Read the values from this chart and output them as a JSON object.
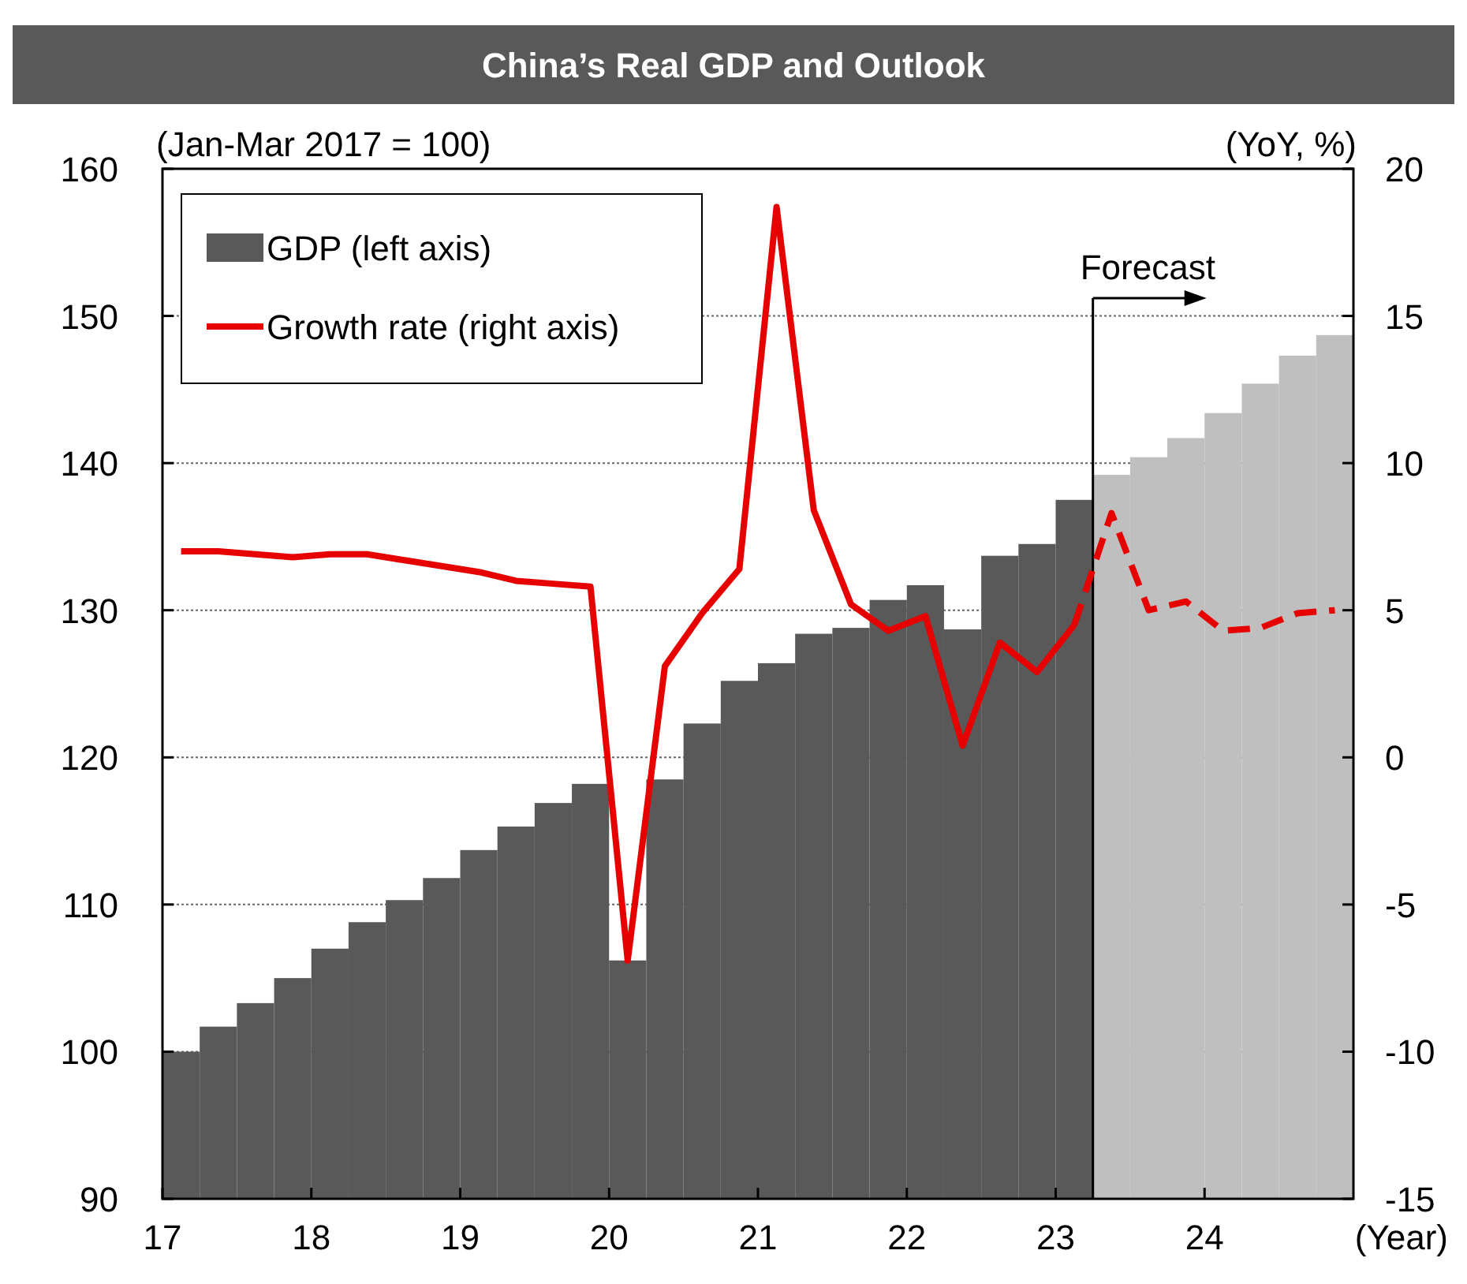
{
  "chart_data": {
    "type": "bar",
    "title": "China’s Real GDP and Outlook",
    "xlabel": "(Year)",
    "ylabel": "(Jan-Mar 2017 = 100)",
    "y2label": "(YoY, %)",
    "x": [
      2017.125,
      2017.375,
      2017.625,
      2017.875,
      2018.125,
      2018.375,
      2018.625,
      2018.875,
      2019.125,
      2019.375,
      2019.625,
      2019.875,
      2020.125,
      2020.375,
      2020.625,
      2020.875,
      2021.125,
      2021.375,
      2021.625,
      2021.875,
      2022.125,
      2022.375,
      2022.625,
      2022.875,
      2023.125,
      2023.375,
      2023.625,
      2023.875,
      2024.125,
      2024.375,
      2024.625,
      2024.875
    ],
    "xlim": [
      2017,
      2025
    ],
    "xticks": [
      {
        "value": 2017,
        "label": "17"
      },
      {
        "value": 2018,
        "label": "18"
      },
      {
        "value": 2019,
        "label": "19"
      },
      {
        "value": 2020,
        "label": "20"
      },
      {
        "value": 2021,
        "label": "21"
      },
      {
        "value": 2022,
        "label": "22"
      },
      {
        "value": 2023,
        "label": "23"
      },
      {
        "value": 2024,
        "label": "24"
      }
    ],
    "ylim": [
      90,
      160
    ],
    "yticks": [
      90,
      100,
      110,
      120,
      130,
      140,
      150,
      160
    ],
    "y2lim": [
      -15,
      20
    ],
    "y2ticks": [
      -15,
      -10,
      -5,
      0,
      5,
      10,
      15,
      20
    ],
    "grid": "y",
    "legend": "top left",
    "ref_lines": [
      {
        "axis": "x",
        "value": 2023.25,
        "label": "Forecast",
        "color": "#000000"
      }
    ],
    "series": [
      {
        "name": "GDP (left axis)",
        "color": "#595959",
        "colors": [
          "#595959",
          "#595959",
          "#595959",
          "#595959",
          "#595959",
          "#595959",
          "#595959",
          "#595959",
          "#595959",
          "#595959",
          "#595959",
          "#595959",
          "#595959",
          "#595959",
          "#595959",
          "#595959",
          "#595959",
          "#595959",
          "#595959",
          "#595959",
          "#595959",
          "#595959",
          "#595959",
          "#595959",
          "#595959",
          "#bfbfbf",
          "#bfbfbf",
          "#bfbfbf",
          "#bfbfbf",
          "#bfbfbf",
          "#bfbfbf",
          "#bfbfbf"
        ],
        "values": [
          100,
          101.7,
          103.3,
          105,
          107,
          108.8,
          110.3,
          111.8,
          113.7,
          115.3,
          116.9,
          118.2,
          106.2,
          118.5,
          122.3,
          125.2,
          126.4,
          128.4,
          128.8,
          130.7,
          131.7,
          128.7,
          133.7,
          134.5,
          137.5,
          139.2,
          140.4,
          141.7,
          143.4,
          145.4,
          147.3,
          148.7
        ]
      },
      {
        "type": "line",
        "name": "Growth rate (right axis)",
        "color": "#e60000",
        "axis": "y2",
        "line_style": "solid",
        "x": [
          2017.125,
          2017.375,
          2017.625,
          2017.875,
          2018.125,
          2018.375,
          2018.625,
          2018.875,
          2019.125,
          2019.375,
          2019.625,
          2019.875,
          2020.125,
          2020.375,
          2020.625,
          2020.875,
          2021.125,
          2021.375,
          2021.625,
          2021.875,
          2022.125,
          2022.375,
          2022.625,
          2022.875,
          2023.125
        ],
        "values": [
          7.0,
          7.0,
          6.9,
          6.8,
          6.9,
          6.9,
          6.7,
          6.5,
          6.3,
          6.0,
          5.9,
          5.8,
          -6.9,
          3.1,
          4.9,
          6.4,
          18.7,
          8.4,
          5.2,
          4.3,
          4.8,
          0.4,
          3.9,
          2.9,
          4.5
        ]
      },
      {
        "type": "line",
        "color": "#e60000",
        "axis": "y2",
        "line_style": "dashed",
        "x": [
          2023.125,
          2023.375,
          2023.625,
          2023.875,
          2024.125,
          2024.375,
          2024.625,
          2024.875
        ],
        "values": [
          4.5,
          8.3,
          5.0,
          5.3,
          4.3,
          4.4,
          4.9,
          5.0
        ]
      }
    ]
  }
}
